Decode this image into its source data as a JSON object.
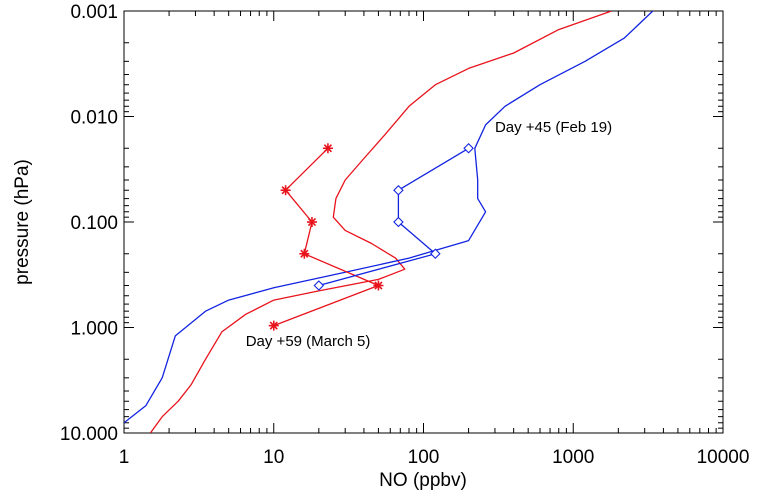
{
  "chart_data": {
    "type": "line",
    "xlabel": "NO (ppbv)",
    "ylabel": "pressure (hPa)",
    "xscale": "log",
    "yscale": "log",
    "y_inverted": true,
    "xlim": [
      1,
      10000
    ],
    "ylim": [
      10,
      0.001
    ],
    "grid": false,
    "x_ticks": [
      1,
      10,
      100,
      1000,
      10000
    ],
    "x_tick_labels": [
      "1",
      "10",
      "100",
      "1000",
      "10000"
    ],
    "y_ticks": [
      0.001,
      0.01,
      0.1,
      1,
      10
    ],
    "y_tick_labels": [
      "0.001",
      "0.010",
      "0.100",
      "1.000",
      "10.000"
    ],
    "colors": {
      "red": "#e8131c",
      "blue": "#1224e0"
    },
    "series": [
      {
        "color": "#e8131c",
        "marker": "none",
        "points": [
          {
            "x": 1.5,
            "y": 10.0
          },
          {
            "x": 1.8,
            "y": 7.0
          },
          {
            "x": 2.3,
            "y": 5.0
          },
          {
            "x": 2.8,
            "y": 3.5
          },
          {
            "x": 3.5,
            "y": 2.0
          },
          {
            "x": 4.5,
            "y": 1.1
          },
          {
            "x": 6.5,
            "y": 0.75
          },
          {
            "x": 10.0,
            "y": 0.55
          },
          {
            "x": 20.0,
            "y": 0.45
          },
          {
            "x": 50.0,
            "y": 0.35
          },
          {
            "x": 75.0,
            "y": 0.28
          },
          {
            "x": 65.0,
            "y": 0.22
          },
          {
            "x": 45.0,
            "y": 0.16
          },
          {
            "x": 30.0,
            "y": 0.12
          },
          {
            "x": 25.0,
            "y": 0.09
          },
          {
            "x": 26.0,
            "y": 0.06
          },
          {
            "x": 30.0,
            "y": 0.04
          },
          {
            "x": 40.0,
            "y": 0.025
          },
          {
            "x": 55.0,
            "y": 0.015
          },
          {
            "x": 80.0,
            "y": 0.008
          },
          {
            "x": 120.0,
            "y": 0.005
          },
          {
            "x": 200.0,
            "y": 0.0035
          },
          {
            "x": 400.0,
            "y": 0.0025
          },
          {
            "x": 800.0,
            "y": 0.0015
          },
          {
            "x": 1800.0,
            "y": 0.001
          }
        ]
      },
      {
        "color": "#1224e0",
        "marker": "none",
        "points": [
          {
            "x": 1.0,
            "y": 8.0
          },
          {
            "x": 1.4,
            "y": 5.5
          },
          {
            "x": 1.8,
            "y": 3.0
          },
          {
            "x": 2.2,
            "y": 1.2
          },
          {
            "x": 3.5,
            "y": 0.7
          },
          {
            "x": 5.0,
            "y": 0.55
          },
          {
            "x": 10.0,
            "y": 0.42
          },
          {
            "x": 30.0,
            "y": 0.3
          },
          {
            "x": 80.0,
            "y": 0.22
          },
          {
            "x": 200.0,
            "y": 0.15
          },
          {
            "x": 260.0,
            "y": 0.08
          },
          {
            "x": 230.0,
            "y": 0.06
          },
          {
            "x": 230.0,
            "y": 0.04
          },
          {
            "x": 220.0,
            "y": 0.02
          },
          {
            "x": 260.0,
            "y": 0.012
          },
          {
            "x": 350.0,
            "y": 0.008
          },
          {
            "x": 600.0,
            "y": 0.005
          },
          {
            "x": 1200.0,
            "y": 0.003
          },
          {
            "x": 2200.0,
            "y": 0.0018
          },
          {
            "x": 3400.0,
            "y": 0.001
          }
        ]
      },
      {
        "color": "#e8131c",
        "marker": "asterisk",
        "points": [
          {
            "x": 23.0,
            "y": 0.02
          },
          {
            "x": 12.0,
            "y": 0.05
          },
          {
            "x": 18.0,
            "y": 0.1
          },
          {
            "x": 16.0,
            "y": 0.2
          },
          {
            "x": 50.0,
            "y": 0.4
          },
          {
            "x": 10.0,
            "y": 0.96
          }
        ]
      },
      {
        "color": "#1224e0",
        "marker": "diamond",
        "points": [
          {
            "x": 200.0,
            "y": 0.02
          },
          {
            "x": 68.0,
            "y": 0.05
          },
          {
            "x": 68.0,
            "y": 0.1
          },
          {
            "x": 120.0,
            "y": 0.2
          },
          {
            "x": 20.0,
            "y": 0.4
          }
        ]
      }
    ],
    "annotations": [
      {
        "text": "Day +45 (Feb 19)",
        "x": 300.0,
        "y": 0.014
      },
      {
        "text": "Day +59 (March 5)",
        "x": 6.5,
        "y": 1.5
      }
    ]
  }
}
